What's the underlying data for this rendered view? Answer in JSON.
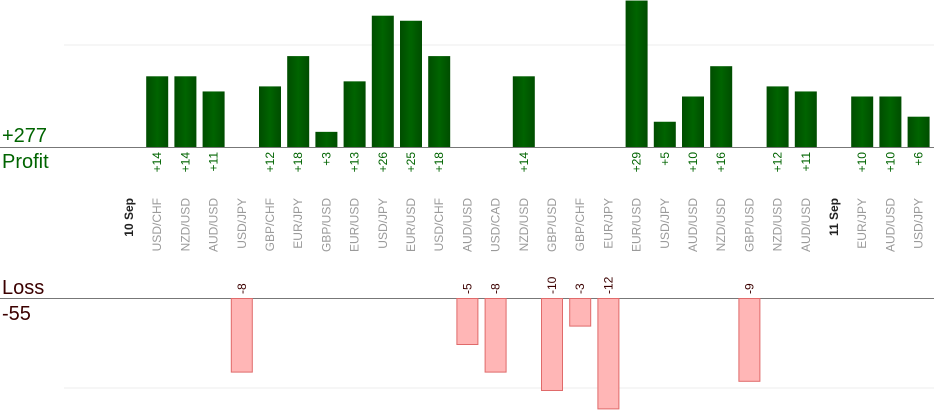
{
  "chart_data": {
    "type": "bar",
    "profit_label": "Profit",
    "loss_label": "Loss",
    "profit_total": "+277",
    "loss_total": "-55",
    "colors": {
      "profit": "#006400",
      "loss": "#ffb6b6",
      "loss_stroke": "#e06a6a",
      "profit_text": "#006400",
      "loss_text": "#3b0000"
    },
    "grid": true,
    "ylim_profit": [
      0,
      30
    ],
    "ylim_loss": [
      -12,
      0
    ],
    "items": [
      {
        "kind": "date",
        "label": "10 Sep"
      },
      {
        "kind": "trade",
        "pair": "USD/CHF",
        "value": 14,
        "display": "+14"
      },
      {
        "kind": "trade",
        "pair": "NZD/USD",
        "value": 14,
        "display": "+14"
      },
      {
        "kind": "trade",
        "pair": "AUD/USD",
        "value": 11,
        "display": "+11"
      },
      {
        "kind": "trade",
        "pair": "USD/JPY",
        "value": -8,
        "display": "-8"
      },
      {
        "kind": "trade",
        "pair": "GBP/CHF",
        "value": 12,
        "display": "+12"
      },
      {
        "kind": "trade",
        "pair": "EUR/JPY",
        "value": 18,
        "display": "+18"
      },
      {
        "kind": "trade",
        "pair": "GBP/USD",
        "value": 3,
        "display": "+3"
      },
      {
        "kind": "trade",
        "pair": "EUR/USD",
        "value": 13,
        "display": "+13"
      },
      {
        "kind": "trade",
        "pair": "USD/JPY",
        "value": 26,
        "display": "+26"
      },
      {
        "kind": "trade",
        "pair": "EUR/USD",
        "value": 25,
        "display": "+25"
      },
      {
        "kind": "trade",
        "pair": "USD/CHF",
        "value": 18,
        "display": "+18"
      },
      {
        "kind": "trade",
        "pair": "AUD/USD",
        "value": -5,
        "display": "-5"
      },
      {
        "kind": "trade",
        "pair": "USD/CAD",
        "value": -8,
        "display": "-8"
      },
      {
        "kind": "trade",
        "pair": "NZD/USD",
        "value": 14,
        "display": "+14"
      },
      {
        "kind": "trade",
        "pair": "GBP/USD",
        "value": -10,
        "display": "-10"
      },
      {
        "kind": "trade",
        "pair": "GBP/CHF",
        "value": -3,
        "display": "-3"
      },
      {
        "kind": "trade",
        "pair": "EUR/JPY",
        "value": -12,
        "display": "-12"
      },
      {
        "kind": "trade",
        "pair": "EUR/USD",
        "value": 29,
        "display": "+29"
      },
      {
        "kind": "trade",
        "pair": "USD/JPY",
        "value": 5,
        "display": "+5"
      },
      {
        "kind": "trade",
        "pair": "AUD/USD",
        "value": 10,
        "display": "+10"
      },
      {
        "kind": "trade",
        "pair": "NZD/USD",
        "value": 16,
        "display": "+16"
      },
      {
        "kind": "trade",
        "pair": "GBP/USD",
        "value": -9,
        "display": "-9"
      },
      {
        "kind": "trade",
        "pair": "NZD/USD",
        "value": 12,
        "display": "+12"
      },
      {
        "kind": "trade",
        "pair": "AUD/USD",
        "value": 11,
        "display": "+11"
      },
      {
        "kind": "date",
        "label": "11 Sep"
      },
      {
        "kind": "trade",
        "pair": "EUR/JPY",
        "value": 10,
        "display": "+10"
      },
      {
        "kind": "trade",
        "pair": "AUD/USD",
        "value": 10,
        "display": "+10"
      },
      {
        "kind": "trade",
        "pair": "USD/JPY",
        "value": 6,
        "display": "+6"
      }
    ]
  }
}
